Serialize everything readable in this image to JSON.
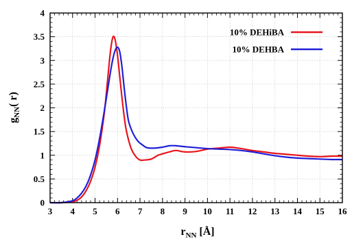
{
  "chart_data": {
    "type": "line",
    "xlabel": {
      "main": "r",
      "sub": "NN",
      "rest": " [Å]"
    },
    "ylabel": {
      "main": "g",
      "sub": "NN",
      "rest": "( r)"
    },
    "xlim": [
      3,
      16
    ],
    "ylim": [
      0,
      4
    ],
    "xticks": [
      "3",
      "4",
      "5",
      "6",
      "7",
      "8",
      "9",
      "10",
      "11",
      "12",
      "13",
      "14",
      "15",
      "16"
    ],
    "yticks": [
      "0",
      "0.5",
      "1",
      "1.5",
      "2",
      "2.5",
      "3",
      "3.5",
      "4"
    ],
    "grid": true,
    "legend_position": "top-right",
    "series": [
      {
        "name": "10% DEHiBA",
        "color": "#e8141c",
        "x": [
          3.0,
          3.5,
          4.0,
          4.2,
          4.4,
          4.6,
          4.8,
          5.0,
          5.2,
          5.4,
          5.5,
          5.6,
          5.7,
          5.8,
          5.9,
          6.0,
          6.1,
          6.2,
          6.3,
          6.4,
          6.6,
          6.8,
          7.0,
          7.2,
          7.5,
          7.8,
          8.0,
          8.3,
          8.6,
          9.0,
          9.5,
          10.0,
          10.5,
          11.0,
          11.5,
          12.0,
          12.5,
          13.0,
          13.5,
          14.0,
          14.5,
          15.0,
          15.5,
          16.0
        ],
        "y": [
          0.0,
          0.0,
          0.02,
          0.05,
          0.12,
          0.25,
          0.45,
          0.75,
          1.2,
          1.85,
          2.3,
          2.8,
          3.25,
          3.5,
          3.42,
          3.1,
          2.65,
          2.2,
          1.8,
          1.5,
          1.15,
          0.98,
          0.9,
          0.9,
          0.92,
          1.0,
          1.03,
          1.07,
          1.1,
          1.07,
          1.08,
          1.13,
          1.15,
          1.17,
          1.14,
          1.1,
          1.07,
          1.04,
          1.02,
          1.0,
          0.98,
          0.97,
          0.98,
          0.98
        ]
      },
      {
        "name": "10% DEHBA",
        "color": "#1f1fd8",
        "x": [
          3.0,
          3.5,
          4.0,
          4.2,
          4.4,
          4.6,
          4.8,
          5.0,
          5.2,
          5.4,
          5.6,
          5.7,
          5.8,
          5.9,
          6.0,
          6.1,
          6.2,
          6.3,
          6.4,
          6.5,
          6.7,
          6.9,
          7.1,
          7.3,
          7.6,
          8.0,
          8.3,
          8.6,
          9.0,
          9.5,
          10.0,
          10.5,
          11.0,
          11.5,
          12.0,
          12.5,
          13.0,
          13.5,
          14.0,
          14.5,
          15.0,
          15.5,
          16.0
        ],
        "y": [
          0.0,
          0.0,
          0.04,
          0.1,
          0.2,
          0.35,
          0.58,
          0.9,
          1.35,
          1.9,
          2.5,
          2.8,
          3.05,
          3.22,
          3.28,
          3.18,
          2.85,
          2.4,
          2.0,
          1.7,
          1.45,
          1.3,
          1.22,
          1.16,
          1.15,
          1.17,
          1.2,
          1.2,
          1.18,
          1.16,
          1.14,
          1.13,
          1.12,
          1.1,
          1.07,
          1.03,
          0.99,
          0.96,
          0.94,
          0.93,
          0.92,
          0.91,
          0.91
        ]
      }
    ]
  }
}
